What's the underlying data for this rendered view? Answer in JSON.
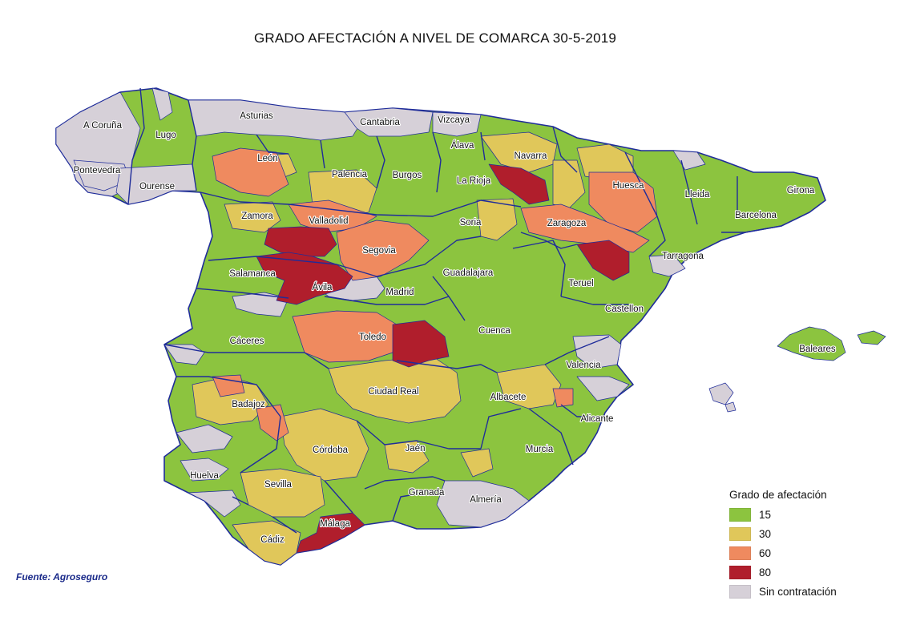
{
  "title": "GRADO AFECTACIÓN A NIVEL DE COMARCA 30-5-2019",
  "source": "Fuente: Agroseguro",
  "legend": {
    "title": "Grado de afectación",
    "items": [
      {
        "label": "15",
        "color": "#8cc43f"
      },
      {
        "label": "30",
        "color": "#e0c75a"
      },
      {
        "label": "60",
        "color": "#ef8a5f"
      },
      {
        "label": "80",
        "color": "#b01e2c"
      },
      {
        "label": "Sin contratación",
        "color": "#d6d0d8"
      }
    ]
  },
  "colors": {
    "border": "#1f2c9a",
    "green": "#8cc43f",
    "yellow": "#e0c75a",
    "orange": "#ef8a5f",
    "red": "#b01e2c",
    "grey": "#d6d0d8"
  },
  "provinces": [
    {
      "name": "A Coruña",
      "level": "Sin contratación"
    },
    {
      "name": "Lugo",
      "level": "15"
    },
    {
      "name": "Asturias",
      "level": "Sin contratación"
    },
    {
      "name": "Cantabria",
      "level": "Sin contratación"
    },
    {
      "name": "Vizcaya",
      "level": "Sin contratación"
    },
    {
      "name": "Álava",
      "level": "15"
    },
    {
      "name": "Navarra",
      "level": "30"
    },
    {
      "name": "Pontevedra",
      "level": "Sin contratación"
    },
    {
      "name": "Ourense",
      "level": "Sin contratación"
    },
    {
      "name": "León",
      "level": "60"
    },
    {
      "name": "Palencia",
      "level": "30"
    },
    {
      "name": "Burgos",
      "level": "15"
    },
    {
      "name": "La Rioja",
      "level": "15"
    },
    {
      "name": "Huesca",
      "level": "60"
    },
    {
      "name": "Lleida",
      "level": "15"
    },
    {
      "name": "Girona",
      "level": "15"
    },
    {
      "name": "Barcelona",
      "level": "15"
    },
    {
      "name": "Zamora",
      "level": "30"
    },
    {
      "name": "Valladolid",
      "level": "80"
    },
    {
      "name": "Soria",
      "level": "15"
    },
    {
      "name": "Zaragoza",
      "level": "60"
    },
    {
      "name": "Segovia",
      "level": "60"
    },
    {
      "name": "Tarragona",
      "level": "15"
    },
    {
      "name": "Salamanca",
      "level": "80"
    },
    {
      "name": "Ávila",
      "level": "80"
    },
    {
      "name": "Guadalajara",
      "level": "15"
    },
    {
      "name": "Teruel",
      "level": "80"
    },
    {
      "name": "Madrid",
      "level": "15"
    },
    {
      "name": "Castellon",
      "level": "15"
    },
    {
      "name": "Cáceres",
      "level": "15"
    },
    {
      "name": "Toledo",
      "level": "60"
    },
    {
      "name": "Cuenca",
      "level": "15"
    },
    {
      "name": "Baleares",
      "level": "15"
    },
    {
      "name": "Valencia",
      "level": "15"
    },
    {
      "name": "Ciudad Real",
      "level": "30"
    },
    {
      "name": "Albacete",
      "level": "30"
    },
    {
      "name": "Badajoz",
      "level": "30"
    },
    {
      "name": "Alicante",
      "level": "15"
    },
    {
      "name": "Córdoba",
      "level": "30"
    },
    {
      "name": "Jaén",
      "level": "15"
    },
    {
      "name": "Murcia",
      "level": "15"
    },
    {
      "name": "Huelva",
      "level": "15"
    },
    {
      "name": "Sevilla",
      "level": "30"
    },
    {
      "name": "Granada",
      "level": "15"
    },
    {
      "name": "Almería",
      "level": "Sin contratación"
    },
    {
      "name": "Málaga",
      "level": "80"
    },
    {
      "name": "Cádiz",
      "level": "30"
    }
  ]
}
